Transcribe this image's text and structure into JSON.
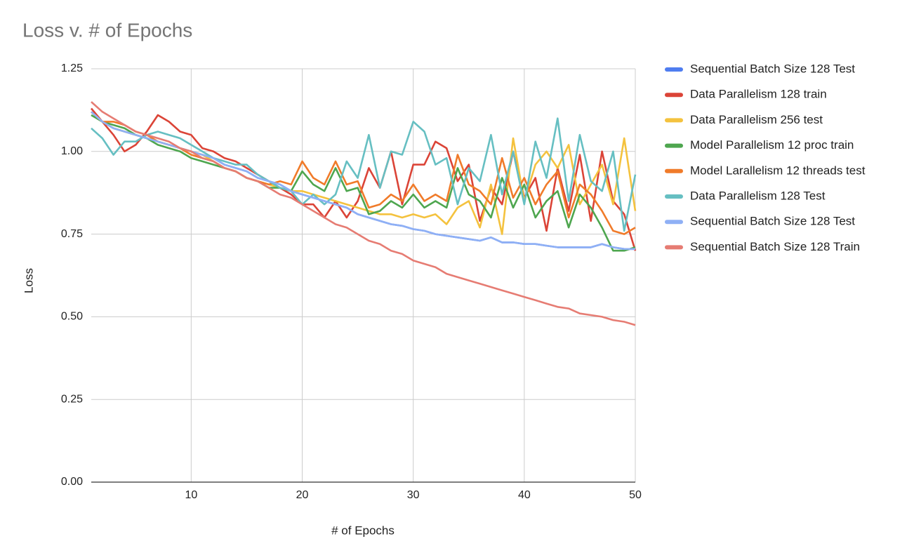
{
  "chart_data": {
    "type": "line",
    "title": "Loss v. # of Epochs",
    "x_label": "# of Epochs",
    "y_label": "Loss",
    "x": [
      1,
      2,
      3,
      4,
      5,
      6,
      7,
      8,
      9,
      10,
      11,
      12,
      13,
      14,
      15,
      16,
      17,
      18,
      19,
      20,
      21,
      22,
      23,
      24,
      25,
      26,
      27,
      28,
      29,
      30,
      31,
      32,
      33,
      34,
      35,
      36,
      37,
      38,
      39,
      40,
      41,
      42,
      43,
      44,
      45,
      46,
      47,
      48,
      49,
      50
    ],
    "xlim": [
      1,
      50
    ],
    "xticks": [
      10,
      20,
      30,
      40,
      50
    ],
    "ylim": [
      0,
      1.25
    ],
    "yticks": [
      {
        "value": 0,
        "label": "0.00"
      },
      {
        "value": 0.25,
        "label": "0.25"
      },
      {
        "value": 0.5,
        "label": "0.50"
      },
      {
        "value": 0.75,
        "label": "0.75"
      },
      {
        "value": 1,
        "label": "1.00"
      },
      {
        "value": 1.25,
        "label": "1.25"
      }
    ],
    "grid": true,
    "legend": "right",
    "series": [
      {
        "name": "Sequential Batch Size 128 Test",
        "color": "#4f7df0",
        "values": [
          1.12,
          1.09,
          1.07,
          1.06,
          1.05,
          1.04,
          1.03,
          1.02,
          1.01,
          1.0,
          0.99,
          0.98,
          0.96,
          0.95,
          0.94,
          0.92,
          0.91,
          0.9,
          0.88,
          0.87,
          0.86,
          0.85,
          0.84,
          0.83,
          0.81,
          0.8,
          0.79,
          0.78,
          0.775,
          0.765,
          0.76,
          0.75,
          0.745,
          0.74,
          0.735,
          0.73,
          0.74,
          0.725,
          0.725,
          0.72,
          0.72,
          0.715,
          0.71,
          0.71,
          0.71,
          0.71,
          0.72,
          0.71,
          0.705,
          0.705
        ]
      },
      {
        "name": "Data Parallelism 128 train",
        "color": "#db4437",
        "values": [
          1.13,
          1.09,
          1.05,
          1.0,
          1.02,
          1.06,
          1.11,
          1.09,
          1.06,
          1.05,
          1.01,
          1.0,
          0.98,
          0.97,
          0.95,
          0.93,
          0.91,
          0.89,
          0.87,
          0.84,
          0.84,
          0.8,
          0.85,
          0.8,
          0.85,
          0.95,
          0.89,
          1.0,
          0.84,
          0.96,
          0.96,
          1.03,
          1.01,
          0.91,
          0.96,
          0.79,
          0.89,
          0.84,
          1.0,
          0.86,
          0.92,
          0.76,
          0.95,
          0.82,
          0.99,
          0.79,
          1.0,
          0.85,
          0.81,
          0.7
        ]
      },
      {
        "name": "Data Parallelism 256 test",
        "color": "#f4c23e",
        "values": [
          1.12,
          1.09,
          1.07,
          1.06,
          1.05,
          1.04,
          1.03,
          1.02,
          1.01,
          1.0,
          0.99,
          0.97,
          0.95,
          0.94,
          0.92,
          0.91,
          0.9,
          0.89,
          0.88,
          0.88,
          0.87,
          0.86,
          0.85,
          0.84,
          0.83,
          0.82,
          0.81,
          0.81,
          0.8,
          0.81,
          0.8,
          0.81,
          0.78,
          0.83,
          0.85,
          0.77,
          0.9,
          0.75,
          1.04,
          0.85,
          0.96,
          1.0,
          0.95,
          1.02,
          0.84,
          0.9,
          0.96,
          0.84,
          1.04,
          0.82
        ]
      },
      {
        "name": "Model Parallelism 12 proc train",
        "color": "#4ea64f",
        "values": [
          1.11,
          1.09,
          1.08,
          1.07,
          1.05,
          1.04,
          1.02,
          1.01,
          1.0,
          0.98,
          0.97,
          0.96,
          0.95,
          0.94,
          0.92,
          0.91,
          0.89,
          0.89,
          0.88,
          0.94,
          0.9,
          0.88,
          0.95,
          0.88,
          0.89,
          0.81,
          0.82,
          0.85,
          0.83,
          0.87,
          0.83,
          0.85,
          0.83,
          0.95,
          0.87,
          0.85,
          0.8,
          0.92,
          0.83,
          0.9,
          0.8,
          0.85,
          0.88,
          0.77,
          0.87,
          0.83,
          0.77,
          0.7,
          0.7,
          0.71
        ]
      },
      {
        "name": "Model Larallelism 12 threads test",
        "color": "#f07b2a",
        "values": [
          1.12,
          1.09,
          1.09,
          1.08,
          1.06,
          1.05,
          1.03,
          1.02,
          1.01,
          0.99,
          0.98,
          0.97,
          0.95,
          0.94,
          0.92,
          0.91,
          0.9,
          0.91,
          0.9,
          0.97,
          0.92,
          0.9,
          0.97,
          0.9,
          0.91,
          0.83,
          0.84,
          0.87,
          0.85,
          0.9,
          0.85,
          0.87,
          0.85,
          0.99,
          0.9,
          0.88,
          0.84,
          0.98,
          0.86,
          0.92,
          0.84,
          0.9,
          0.94,
          0.8,
          0.9,
          0.87,
          0.82,
          0.76,
          0.75,
          0.77
        ]
      },
      {
        "name": "Data Parallelism 128 Test",
        "color": "#66bfc2",
        "values": [
          1.07,
          1.04,
          0.99,
          1.03,
          1.03,
          1.05,
          1.06,
          1.05,
          1.04,
          1.02,
          1.0,
          0.98,
          0.97,
          0.96,
          0.96,
          0.93,
          0.91,
          0.89,
          0.88,
          0.84,
          0.87,
          0.84,
          0.87,
          0.97,
          0.92,
          1.05,
          0.89,
          1.0,
          0.99,
          1.09,
          1.06,
          0.96,
          0.98,
          0.84,
          0.95,
          0.91,
          1.05,
          0.87,
          1.0,
          0.84,
          1.03,
          0.92,
          1.1,
          0.85,
          1.05,
          0.91,
          0.88,
          1.0,
          0.76,
          0.93
        ]
      },
      {
        "name": "Sequential Batch Size 128 Test",
        "color": "#8fb0f5",
        "values": [
          1.12,
          1.09,
          1.07,
          1.06,
          1.05,
          1.04,
          1.03,
          1.02,
          1.01,
          1.0,
          0.99,
          0.98,
          0.96,
          0.95,
          0.94,
          0.92,
          0.91,
          0.9,
          0.88,
          0.87,
          0.86,
          0.85,
          0.84,
          0.83,
          0.81,
          0.8,
          0.79,
          0.78,
          0.775,
          0.765,
          0.76,
          0.75,
          0.745,
          0.74,
          0.735,
          0.73,
          0.74,
          0.725,
          0.725,
          0.72,
          0.72,
          0.715,
          0.71,
          0.71,
          0.71,
          0.71,
          0.72,
          0.71,
          0.705,
          0.705
        ]
      },
      {
        "name": "Sequential Batch Size 128 Train",
        "color": "#e67c73",
        "values": [
          1.15,
          1.12,
          1.1,
          1.08,
          1.06,
          1.05,
          1.04,
          1.03,
          1.01,
          1.0,
          0.98,
          0.97,
          0.95,
          0.94,
          0.92,
          0.91,
          0.89,
          0.87,
          0.86,
          0.84,
          0.82,
          0.8,
          0.78,
          0.77,
          0.75,
          0.73,
          0.72,
          0.7,
          0.69,
          0.67,
          0.66,
          0.65,
          0.63,
          0.62,
          0.61,
          0.6,
          0.59,
          0.58,
          0.57,
          0.56,
          0.55,
          0.54,
          0.53,
          0.525,
          0.51,
          0.505,
          0.5,
          0.49,
          0.485,
          0.475
        ]
      }
    ]
  }
}
